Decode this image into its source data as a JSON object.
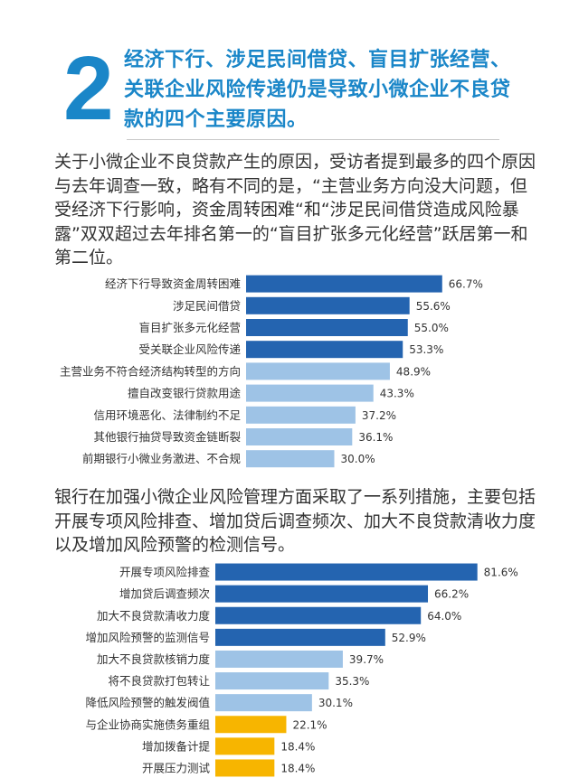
{
  "section_number": "2",
  "headline": "经济下行、涉足民间借贷、盲目扩张经营、关联企业风险传递仍是导致小微企业不良贷款的四个主要原因。",
  "paragraph1": "关于小微企业不良贷款产生的原因，受访者提到最多的四个原因与去年调查一致，略有不同的是，“主营业务方向没大问题，但受经济下行影响，资金周转困难“和“涉足民间借贷造成风险暴露”双双超过去年排名第一的“盲目扩张多元化经营”跃居第一和第二位。",
  "paragraph2": "银行在加强小微企业风险管理方面采取了一系列措施，主要包括开展专项风险排查、增加贷后调查频次、加大不良贷款清收力度以及增加风险预警的检测信号。",
  "colors": {
    "accent": "#1a86c8",
    "dark_blue": "#2464b0",
    "light_blue": "#9ec3e6",
    "yellow": "#f7b500"
  },
  "chart_data": [
    {
      "type": "bar",
      "orientation": "horizontal",
      "unit": "%",
      "categories": [
        "经济下行导致资金周转困难",
        "涉足民间借贷",
        "盲目扩张多元化经营",
        "受关联企业风险传递",
        "主营业务不符合经济结构转型的方向",
        "擅自改变银行贷款用途",
        "信用环境恶化、法律制约不足",
        "其他银行抽贷导致资金链断裂",
        "前期银行小微业务激进、不合规"
      ],
      "values": [
        66.7,
        55.6,
        55.0,
        53.3,
        48.9,
        43.3,
        37.2,
        36.1,
        30.0
      ],
      "value_labels": [
        "66.7%",
        "55.6%",
        "55.0%",
        "53.3%",
        "48.9%",
        "43.3%",
        "37.2%",
        "36.1%",
        "30.0%"
      ],
      "bar_colors": [
        "#2464b0",
        "#2464b0",
        "#2464b0",
        "#2464b0",
        "#9ec3e6",
        "#9ec3e6",
        "#9ec3e6",
        "#9ec3e6",
        "#9ec3e6"
      ]
    },
    {
      "type": "bar",
      "orientation": "horizontal",
      "unit": "%",
      "categories": [
        "开展专项风险排查",
        "增加贷后调查频次",
        "加大不良贷款清收力度",
        "增加风险预警的监测信号",
        "加大不良贷款核销力度",
        "将不良贷款打包转让",
        "降低风险预警的触发阀值",
        "与企业协商实施债务重组",
        "增加拨备计提",
        "开展压力测试"
      ],
      "values": [
        81.6,
        66.2,
        64.0,
        52.9,
        39.7,
        35.3,
        30.1,
        22.1,
        18.4,
        18.4
      ],
      "value_labels": [
        "81.6%",
        "66.2%",
        "64.0%",
        "52.9%",
        "39.7%",
        "35.3%",
        "30.1%",
        "22.1%",
        "18.4%",
        "18.4%"
      ],
      "bar_colors": [
        "#2464b0",
        "#2464b0",
        "#2464b0",
        "#2464b0",
        "#9ec3e6",
        "#9ec3e6",
        "#9ec3e6",
        "#f7b500",
        "#f7b500",
        "#f7b500"
      ]
    }
  ]
}
